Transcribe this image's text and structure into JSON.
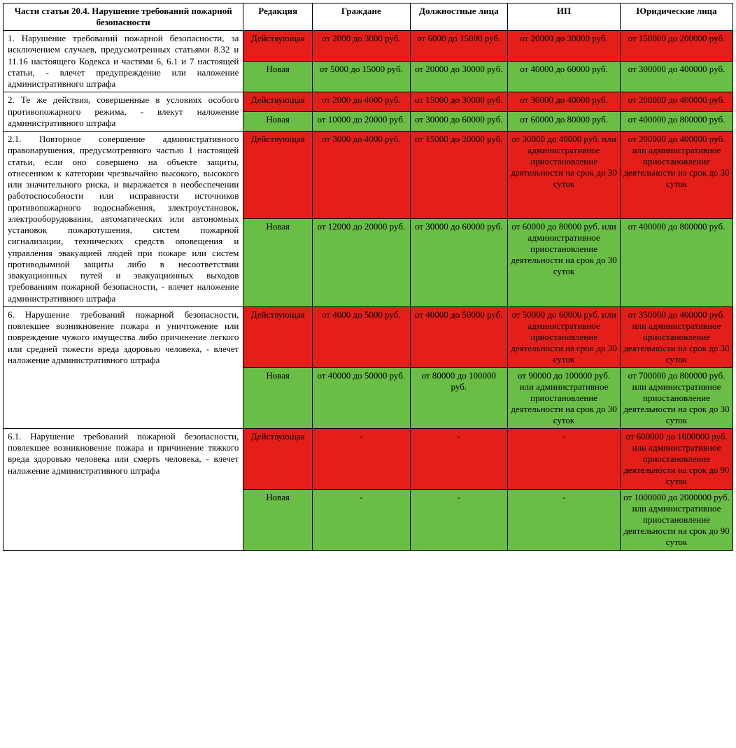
{
  "colors": {
    "red": "#e41f1a",
    "green": "#6abd45",
    "border": "#000000",
    "bg": "#ffffff"
  },
  "header": {
    "col0": "Части статьи 20.4. Нарушение требований пожарной безопасности",
    "col1": "Редакция",
    "col2": "Граждане",
    "col3": "Должностные лица",
    "col4": "ИП",
    "col5": "Юридические лица"
  },
  "redaction": {
    "current": "Действующая",
    "new": "Новая"
  },
  "sections": [
    {
      "desc": "1. Нарушение требований пожарной безопасности, за исключением случаев, предусмотренных статьями 8.32 и 11.16 настоящего Кодекса и частями 6, 6.1 и 7 настоящей статьи, - влечет предупреждение или наложение административного штрафа",
      "cur": {
        "c": "от 2000 до 3000 руб.",
        "d": "от 6000 до 15000 руб.",
        "i": "от 20000 до 30000 руб.",
        "j": "от 150000 до 200000 руб."
      },
      "new": {
        "c": "от 5000 до 15000 руб.",
        "d": "от 20000 до 30000 руб.",
        "i": "от 40000 до 60000 руб.",
        "j": "от 300000 до 400000 руб."
      }
    },
    {
      "desc": "2. Те же действия, совершенные в условиях особого противопожарного режима, - влекут наложение административного штрафа",
      "cur": {
        "c": "от 2000 до 4000 руб.",
        "d": "от 15000 до 30000 руб.",
        "i": "от 30000 до 40000 руб.",
        "j": "от 200000 до 400000 руб."
      },
      "new": {
        "c": "от 10000 до 20000 руб.",
        "d": "от 30000 до 60000 руб.",
        "i": "от 60000 до 80000 руб.",
        "j": "от 400000 до 800000 руб."
      }
    },
    {
      "desc": "2.1. Повторное совершение административного правонарушения, предусмотренного частью 1 настоящей статьи, если оно совершено на объекте защиты, отнесенном к категории чрезвычайно высокого, высокого или значительного риска, и выражается в необеспечении работоспособности или исправности источников противопожарного водоснабжения, электроустановок, электрооборудования, автоматических или автономных установок пожаротушения, систем пожарной сигнализации, технических средств оповещения и управления эвакуацией людей при пожаре или систем противодымной защиты либо в несоответствии эвакуационных путей и эвакуационных выходов требованиям пожарной безопасности, - влечет наложение административного штрафа",
      "cur": {
        "c": "от 3000 до 4000 руб.",
        "d": "от 15000 до 20000 руб.",
        "i": "от 30000 до 40000 руб. или административное приостановление деятельности на срок до 30 суток",
        "j": "от 200000 до 400000 руб. или административное приостановление деятельности на срок до 30 суток"
      },
      "new": {
        "c": "от 12000 до 20000 руб.",
        "d": "от 30000 до 60000 руб.",
        "i": "от 60000 до 80000 руб. или административное приостановление деятельности на срок до 30 суток",
        "j": "от 400000 до 800000 руб."
      }
    },
    {
      "desc": "6. Нарушение требований пожарной безопасности, повлекшее возникновение пожара и уничтожение или повреждение чужого имущества либо причинение легкого или средней тяжести вреда здоровью человека, - влечет наложение административного штрафа",
      "cur": {
        "c": "от 4000 до 5000 руб.",
        "d": "от 40000 до 50000 руб.",
        "i": "от 50000 до 60000 руб. или административное приостановление деятельности на срок до 30 суток",
        "j": "от 350000 до 400000 руб. или административное приостановление деятельности на срок до 30 суток"
      },
      "new": {
        "c": "от 40000 до 50000 руб.",
        "d": "от 80000 до 100000 руб.",
        "i": "от 90000 до 100000 руб. или административное приостановление деятельности на срок до 30 суток",
        "j": "от 700000 до 800000 руб. или административное приостановление деятельности на срок до 30 суток"
      }
    },
    {
      "desc": "6.1. Нарушение требований пожарной безопасности, повлекшее возникновение пожара и причинение тяжкого вреда здоровью человека или смерть человека, - влечет наложение административного штрафа",
      "cur": {
        "c": "-",
        "d": "-",
        "i": "-",
        "j": "от 600000 до 1000000 руб. или административное приостановление деятельности на срок до 90 суток"
      },
      "new": {
        "c": "-",
        "d": "-",
        "i": "-",
        "j": "от 1000000 до 2000000 руб. или административное приостановление деятельности на срок до 90 суток"
      }
    }
  ]
}
